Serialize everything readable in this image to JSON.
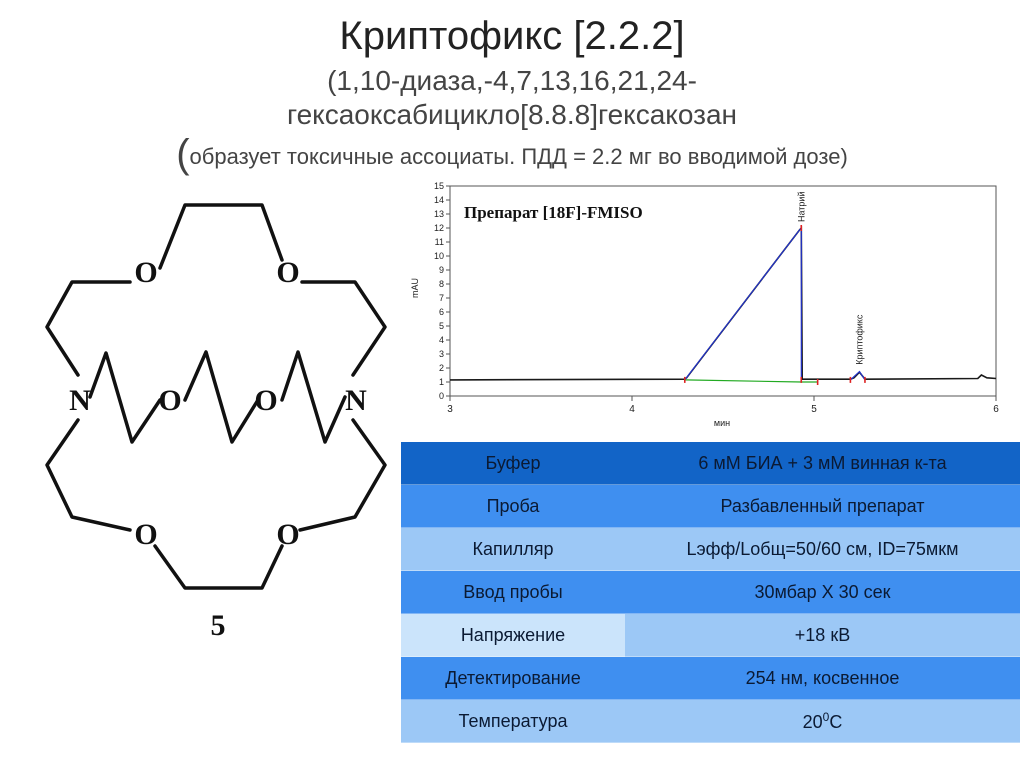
{
  "title": "Криптофикс [2.2.2]",
  "subtitle_line1": "(1,10-диаза,-4,7,13,16,21,24-",
  "subtitle_line2": "гексаоксабицикло[8.8.8]гексакозан",
  "note_paren": "(",
  "note_text": "образует токсичные ассоциаты. ПДД = 2.2 мг во вводимой дозе)",
  "structure": {
    "atom_O": "O",
    "atom_N": "N",
    "compound_number": "5"
  },
  "chart_data": {
    "type": "line",
    "title": "Препарат [18F]-FMISO",
    "xlabel": "мин",
    "ylabel": "mAU",
    "xlim": [
      3,
      6
    ],
    "ylim": [
      0,
      15
    ],
    "x_ticks": [
      "3",
      "4",
      "5",
      "6"
    ],
    "y_ticks": [
      "0",
      "1",
      "2",
      "3",
      "4",
      "5",
      "6",
      "7",
      "8",
      "9",
      "10",
      "11",
      "12",
      "13",
      "14",
      "15"
    ],
    "peak_labels": [
      {
        "x": 4.93,
        "text": "Натрий"
      },
      {
        "x": 5.25,
        "text": "Криптофикс"
      }
    ],
    "series": [
      {
        "color": "#1a1a1a",
        "points": [
          [
            3.0,
            1.15
          ],
          [
            4.29,
            1.2
          ],
          [
            4.3,
            1.3
          ],
          [
            4.92,
            11.85
          ],
          [
            4.93,
            12.0
          ],
          [
            4.935,
            1.2
          ],
          [
            5.2,
            1.2
          ],
          [
            5.22,
            1.3
          ],
          [
            5.25,
            1.7
          ],
          [
            5.28,
            1.2
          ],
          [
            5.9,
            1.25
          ],
          [
            5.92,
            1.5
          ],
          [
            5.95,
            1.3
          ],
          [
            6.0,
            1.25
          ]
        ]
      },
      {
        "color": "#2233cc",
        "points": [
          [
            4.29,
            1.15
          ],
          [
            4.92,
            11.85
          ],
          [
            4.93,
            12.0
          ],
          [
            4.93,
            1.15
          ]
        ]
      },
      {
        "color": "#22aa22",
        "points": [
          [
            4.29,
            1.15
          ],
          [
            4.93,
            1.0
          ],
          [
            5.02,
            1.0
          ]
        ]
      },
      {
        "color": "#2233cc",
        "points": [
          [
            5.2,
            1.15
          ],
          [
            5.25,
            1.75
          ],
          [
            5.28,
            1.15
          ]
        ]
      }
    ],
    "markers": [
      [
        4.29,
        1.15
      ],
      [
        4.93,
        12.0
      ],
      [
        4.93,
        1.15
      ],
      [
        5.02,
        1.0
      ],
      [
        5.2,
        1.15
      ],
      [
        5.28,
        1.15
      ]
    ]
  },
  "table": {
    "rows": [
      {
        "label": "Буфер",
        "value": "6 мМ БИА + 3 мМ винная к-та",
        "style": "dark"
      },
      {
        "label": "Проба",
        "value": "Разбавленный препарат",
        "style": "mid"
      },
      {
        "label": "Капилляр",
        "value": "Lэфф/Lобщ=50/60 см, ID=75мкм",
        "style": "light"
      },
      {
        "label": "Ввод пробы",
        "value": "30мбар Х 30 сек",
        "style": "mid"
      },
      {
        "label": "Напряжение",
        "value": "+18 кВ",
        "style": "pale"
      },
      {
        "label": "Детектирование",
        "value": "254 нм, косвенное",
        "style": "mid"
      },
      {
        "label": "Температура",
        "value": "20",
        "sup": "0",
        "unit": "C",
        "style": "light"
      }
    ]
  },
  "colors": {
    "table_dark": "#1264c7",
    "table_mid": "#3f8ff0",
    "table_light": "#9cc8f6",
    "table_pale": "#cbe4fb"
  }
}
